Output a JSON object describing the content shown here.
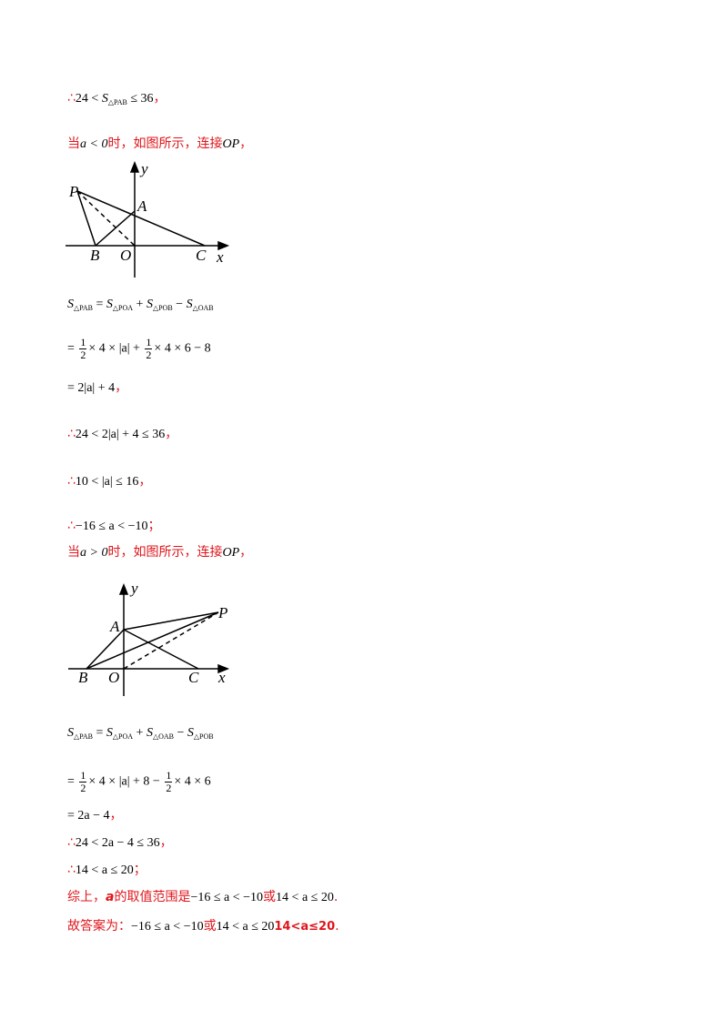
{
  "lines": [
    {
      "segments": [
        {
          "t": "∴",
          "style": "red"
        },
        {
          "t": "24 < ",
          "style": "math"
        },
        {
          "t": "S",
          "sub": "△PAB",
          "style": "math"
        },
        {
          "t": " ≤ 36",
          "style": "math"
        },
        {
          "t": "，",
          "style": "red"
        }
      ]
    },
    {
      "segments": [
        {
          "t": "当",
          "style": "red"
        },
        {
          "t": "a < 0",
          "style": "math"
        },
        {
          "t": "时，如图所示，连接",
          "style": "red"
        },
        {
          "t": "OP",
          "style": "math"
        },
        {
          "t": "，",
          "style": "red"
        }
      ]
    },
    {
      "segments": [
        {
          "t": "S",
          "sub": "△PAB",
          "style": "math"
        },
        {
          "t": " = ",
          "style": "math"
        },
        {
          "t": "S",
          "sub": "△POA",
          "style": "math"
        },
        {
          "t": " + ",
          "style": "math"
        },
        {
          "t": "S",
          "sub": "△POB",
          "style": "math"
        },
        {
          "t": " − ",
          "style": "math"
        },
        {
          "t": "S",
          "sub": "△OAB",
          "style": "math"
        }
      ]
    },
    {
      "segments": [
        {
          "t": "= ",
          "style": "math"
        },
        {
          "num": "1",
          "den": "2",
          "style": "math"
        },
        {
          "t": "× 4 × |a| + ",
          "style": "math"
        },
        {
          "num": "1",
          "den": "2",
          "style": "math"
        },
        {
          "t": "× 4 × 6 − 8",
          "style": "math"
        }
      ]
    },
    {
      "segments": [
        {
          "t": "= 2|a| + 4",
          "style": "math"
        },
        {
          "t": "，",
          "style": "red"
        }
      ]
    },
    {
      "segments": [
        {
          "t": "∴",
          "style": "red"
        },
        {
          "t": "24 < 2|a| + 4 ≤ 36",
          "style": "math"
        },
        {
          "t": "，",
          "style": "red"
        }
      ]
    },
    {
      "segments": [
        {
          "t": "∴",
          "style": "red"
        },
        {
          "t": "10 < |a| ≤ 16",
          "style": "math"
        },
        {
          "t": "，",
          "style": "red"
        }
      ]
    },
    {
      "segments": [
        {
          "t": "∴",
          "style": "red"
        },
        {
          "t": "−16 ≤ a < −10",
          "style": "math"
        },
        {
          "t": "；",
          "style": "red"
        }
      ]
    },
    {
      "segments": [
        {
          "t": "当",
          "style": "red"
        },
        {
          "t": "a > 0",
          "style": "math"
        },
        {
          "t": "时，如图所示，连接",
          "style": "red"
        },
        {
          "t": "OP",
          "style": "math"
        },
        {
          "t": "，",
          "style": "red"
        }
      ]
    },
    {
      "segments": [
        {
          "t": "S",
          "sub": "△PAB",
          "style": "math"
        },
        {
          "t": " = ",
          "style": "math"
        },
        {
          "t": "S",
          "sub": "△POA",
          "style": "math"
        },
        {
          "t": " + ",
          "style": "math"
        },
        {
          "t": "S",
          "sub": "△OAB",
          "style": "math"
        },
        {
          "t": " − ",
          "style": "math"
        },
        {
          "t": "S",
          "sub": "△POB",
          "style": "math"
        }
      ]
    },
    {
      "segments": [
        {
          "t": "= ",
          "style": "math"
        },
        {
          "num": "1",
          "den": "2",
          "style": "math"
        },
        {
          "t": "× 4 × |a| + 8 − ",
          "style": "math"
        },
        {
          "num": "1",
          "den": "2",
          "style": "math"
        },
        {
          "t": "× 4 × 6",
          "style": "math"
        }
      ]
    },
    {
      "segments": [
        {
          "t": "= 2a − 4",
          "style": "math"
        },
        {
          "t": "，",
          "style": "red"
        }
      ]
    },
    {
      "segments": [
        {
          "t": "∴",
          "style": "red"
        },
        {
          "t": "24 < 2a − 4 ≤ 36",
          "style": "math"
        },
        {
          "t": "，",
          "style": "red"
        }
      ]
    },
    {
      "segments": [
        {
          "t": "∴",
          "style": "red"
        },
        {
          "t": "14 < a ≤ 20",
          "style": "math"
        },
        {
          "t": "；",
          "style": "red"
        }
      ]
    },
    {
      "segments": [
        {
          "t": "综上，",
          "style": "red"
        },
        {
          "t": "a",
          "style": "red-italic"
        },
        {
          "t": "的取值范围是",
          "style": "red"
        },
        {
          "t": "−16 ≤ a < −10",
          "style": "math"
        },
        {
          "t": "或",
          "style": "red"
        },
        {
          "t": "14 < a ≤ 20",
          "style": "math"
        },
        {
          "t": ".",
          "style": "red"
        }
      ]
    },
    {
      "segments": [
        {
          "t": "故答案为：",
          "style": "red"
        },
        {
          "t": "−16 ≤ a < −10",
          "style": "math"
        },
        {
          "t": "或",
          "style": "red"
        },
        {
          "t": "14 < a ≤ 20",
          "style": "math"
        },
        {
          "t": "14<a≤20",
          "style": "red-bold"
        },
        {
          "t": ".",
          "style": "red"
        }
      ]
    }
  ],
  "diagrams": [
    {
      "labels": [
        "P",
        "A",
        "B",
        "O",
        "C",
        "x",
        "y"
      ]
    },
    {
      "labels": [
        "P",
        "A",
        "B",
        "O",
        "C",
        "x",
        "y"
      ]
    }
  ]
}
